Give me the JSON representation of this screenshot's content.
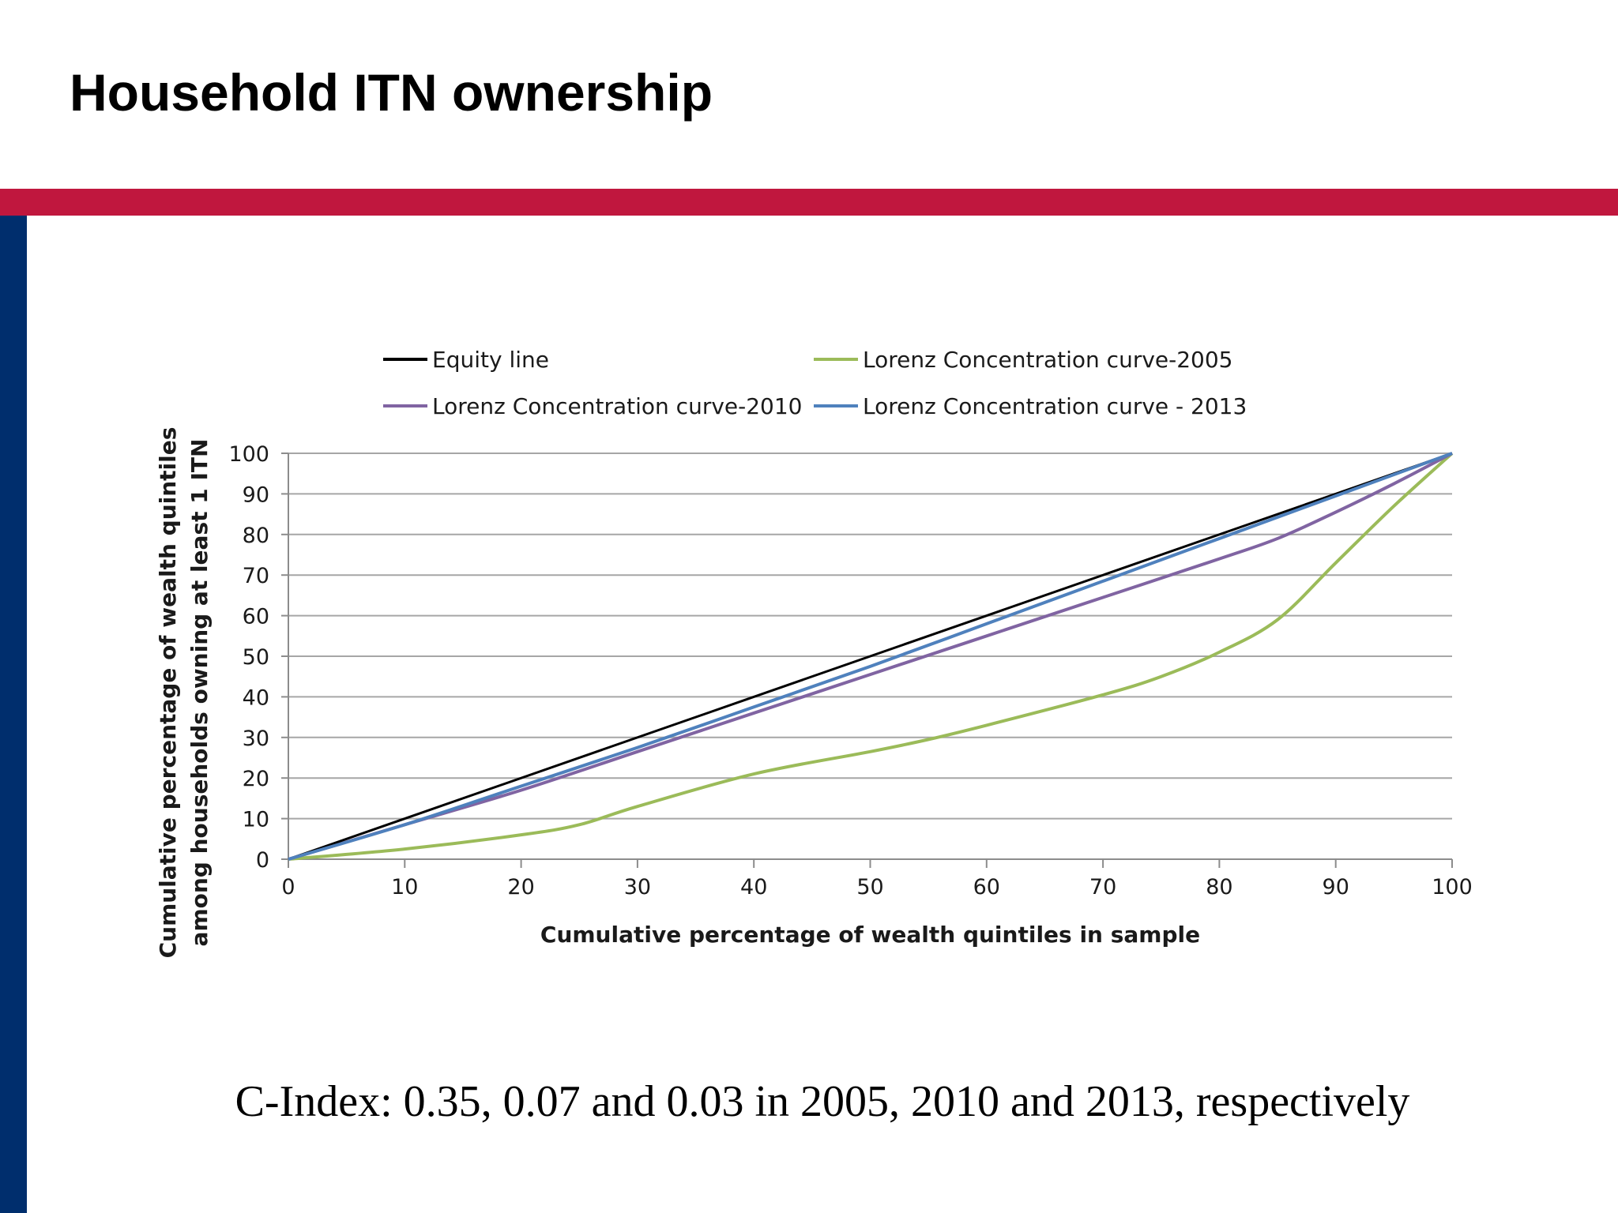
{
  "slide": {
    "title": "Household ITN ownership",
    "caption": "C-Index: 0.35, 0.07 and 0.03 in 2005, 2010 and 2013, respectively"
  },
  "theme": {
    "band_top_color": "#c0173e",
    "band_left_color": "#002e6d",
    "grid_color": "#a6a6a6",
    "axis_color": "#8c8c8c"
  },
  "chart_data": {
    "type": "line",
    "title": "",
    "xlabel": "Cumulative percentage of wealth quintiles in sample",
    "ylabel": [
      "Cumulative percentage of wealth quintiles",
      "among households owning at least 1 ITN"
    ],
    "xlim": [
      0,
      100
    ],
    "ylim": [
      0,
      100
    ],
    "xticks": [
      0,
      10,
      20,
      30,
      40,
      50,
      60,
      70,
      80,
      90,
      100
    ],
    "yticks": [
      0,
      10,
      20,
      30,
      40,
      50,
      60,
      70,
      80,
      90,
      100
    ],
    "grid": "horizontal",
    "legend_position": "top",
    "series": [
      {
        "name": "Equity line",
        "color": "#000000",
        "x": [
          0,
          100
        ],
        "y": [
          0,
          100
        ]
      },
      {
        "name": "Lorenz Concentration curve-2005",
        "color": "#9bbb59",
        "x": [
          0,
          10,
          20,
          25,
          30,
          40,
          50,
          55,
          60,
          70,
          75,
          80,
          85,
          90,
          95,
          100
        ],
        "y": [
          0,
          2.5,
          6,
          8.5,
          13,
          21,
          26.5,
          29.5,
          33,
          40.5,
          45,
          51,
          59,
          73,
          87,
          100
        ]
      },
      {
        "name": "Lorenz Concentration curve-2010",
        "color": "#8064a2",
        "x": [
          0,
          10,
          20,
          30,
          40,
          50,
          60,
          70,
          80,
          85,
          90,
          95,
          100
        ],
        "y": [
          0,
          8.5,
          17,
          26.5,
          36,
          45.5,
          55,
          64.5,
          74,
          79,
          85.5,
          92.5,
          100
        ]
      },
      {
        "name": "Lorenz Concentration curve - 2013",
        "color": "#4f81bd",
        "x": [
          0,
          10,
          20,
          30,
          40,
          50,
          60,
          70,
          80,
          90,
          100
        ],
        "y": [
          0,
          8.5,
          18,
          27.5,
          37.5,
          47.5,
          58,
          68.5,
          79,
          89.5,
          100
        ]
      }
    ]
  }
}
